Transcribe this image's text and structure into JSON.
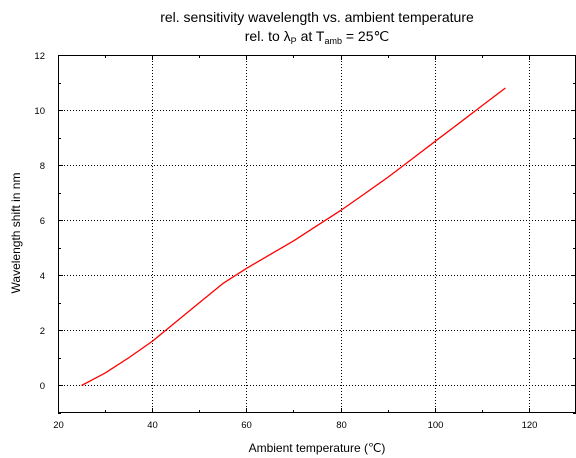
{
  "chart_data": {
    "type": "line",
    "title": "rel. sensitivity wavelength vs. ambient temperature",
    "subtitle": {
      "prefix": "rel. to ",
      "lambda": "λ",
      "lambda_sub": "P",
      "middle": " at T",
      "t_sub": "amb",
      "suffix": " = 25℃"
    },
    "xlabel": "Ambient temperature (℃)",
    "ylabel": "Wavelength shift in nm",
    "xlim": [
      20,
      130
    ],
    "ylim": [
      -1,
      12
    ],
    "xticks": [
      "20",
      "40",
      "60",
      "80",
      "100",
      "120"
    ],
    "yticks": [
      "0",
      "2",
      "4",
      "6",
      "8",
      "10",
      "12"
    ],
    "grid": true,
    "series": [
      {
        "color": "#ff0000",
        "x": [
          25,
          30,
          35,
          40,
          45,
          50,
          55,
          60,
          65,
          70,
          75,
          80,
          85,
          90,
          95,
          100,
          105,
          110,
          115
        ],
        "y": [
          0,
          0.45,
          1.0,
          1.6,
          2.3,
          3.0,
          3.7,
          4.25,
          4.75,
          5.25,
          5.8,
          6.35,
          6.95,
          7.55,
          8.2,
          8.85,
          9.5,
          10.15,
          10.8
        ]
      }
    ]
  }
}
